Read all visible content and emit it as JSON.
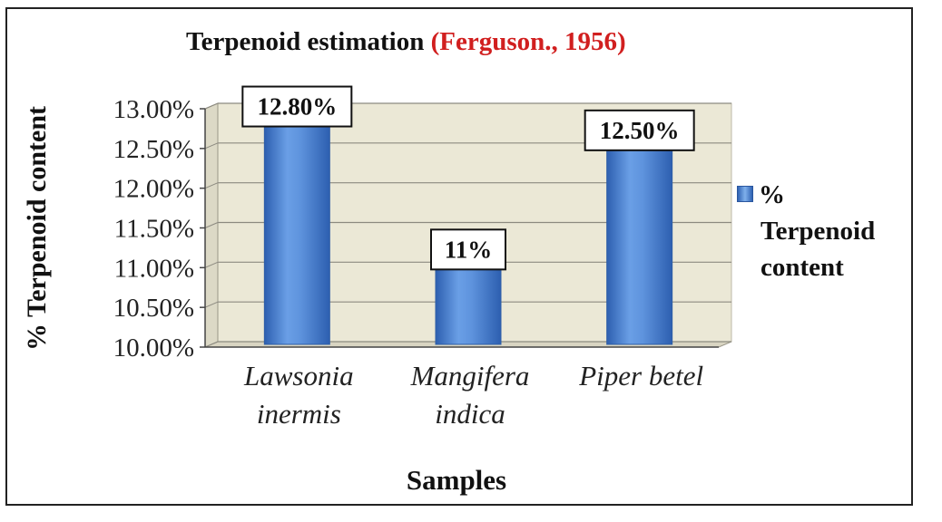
{
  "chart_data": {
    "type": "bar",
    "title": "Terpenoid estimation",
    "title_reference": "(Ferguson., 1956)",
    "categories": [
      "Lawsonia inermis",
      "Mangifera indica",
      "Piper betel"
    ],
    "category_lines": [
      [
        "Lawsonia",
        "inermis"
      ],
      [
        "Mangifera",
        "indica"
      ],
      [
        "Piper betel"
      ]
    ],
    "series": [
      {
        "name": "% Terpenoid content",
        "values": [
          12.8,
          11.0,
          12.5
        ]
      }
    ],
    "data_labels": [
      "12.80%",
      "11%",
      "12.50%"
    ],
    "xlabel": "Samples",
    "ylabel": "% Terpenoid content",
    "ylim": [
      10.0,
      13.0
    ],
    "yticks": [
      10.0,
      10.5,
      11.0,
      11.5,
      12.0,
      12.5,
      13.0
    ],
    "ytick_labels": [
      "10.00%",
      "10.50%",
      "11.00%",
      "11.50%",
      "12.00%",
      "12.50%",
      "13.00%"
    ],
    "grid": true,
    "legend_position": "right",
    "colors": {
      "bar": "#4f86d6",
      "bar_edge": "#2f5ea6",
      "plot_bg": "#ebe8d6",
      "title_ref": "#d11f1f"
    }
  },
  "legend": {
    "line1": "%",
    "line2": "Terpenoid",
    "line3": "content"
  }
}
